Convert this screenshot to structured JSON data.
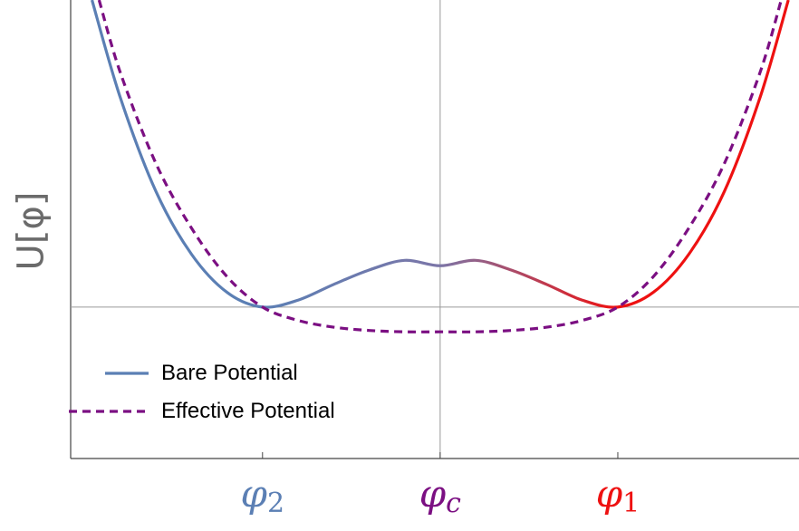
{
  "chart_data": {
    "type": "line",
    "title": "",
    "ylabel": "U[φ]",
    "xlabel": "",
    "x_ticks": [
      {
        "symbol": "φ",
        "subscript": "2",
        "x": -1,
        "color": "#5b7fb4"
      },
      {
        "symbol": "φ",
        "subscript": "c",
        "x": 0,
        "color": "#7b0f82"
      },
      {
        "symbol": "φ",
        "subscript": "1",
        "x": 1,
        "color": "#ee1111"
      }
    ],
    "xlim": [
      -2.08,
      2.02
    ],
    "ylim": [
      -1.1,
      2.23
    ],
    "grid": false,
    "reference_lines": {
      "x": 0,
      "y": 0
    },
    "series": [
      {
        "name": "Bare Potential",
        "style": "solid",
        "color_start": "#5b7fb4",
        "color_end": "#ee1111",
        "x": [
          -1.96,
          -1.8,
          -1.6,
          -1.4,
          -1.2,
          -1.0,
          -0.8,
          -0.6,
          -0.4,
          -0.2,
          0.0,
          0.2,
          0.4,
          0.6,
          0.8,
          1.0,
          1.2,
          1.4,
          1.6,
          1.8,
          1.96
        ],
        "y": [
          2.23,
          1.519,
          0.84,
          0.384,
          0.107,
          0.0,
          0.05,
          0.164,
          0.269,
          0.339,
          0.3,
          0.339,
          0.269,
          0.164,
          0.05,
          0.0,
          0.107,
          0.384,
          0.84,
          1.519,
          2.23
        ]
      },
      {
        "name": "Effective Potential",
        "style": "dashed",
        "color": "#7b0f82",
        "x": [
          -1.92,
          -1.8,
          -1.6,
          -1.4,
          -1.2,
          -1.0,
          -0.8,
          -0.6,
          -0.4,
          -0.2,
          0.0,
          0.2,
          0.4,
          0.6,
          0.8,
          1.0,
          1.2,
          1.4,
          1.6,
          1.8,
          1.92
        ],
        "y": [
          2.23,
          1.701,
          1.043,
          0.574,
          0.221,
          0.0,
          -0.097,
          -0.146,
          -0.17,
          -0.18,
          -0.18,
          -0.18,
          -0.17,
          -0.146,
          -0.097,
          0.0,
          0.221,
          0.574,
          1.043,
          1.701,
          2.23
        ]
      }
    ],
    "legend": {
      "placement": "bottom-left",
      "entries": [
        {
          "label": "Bare Potential",
          "style": "solid",
          "color": "#5b7fb4"
        },
        {
          "label": "Effective Potential",
          "style": "dashed",
          "color": "#7b0f82"
        }
      ]
    }
  }
}
